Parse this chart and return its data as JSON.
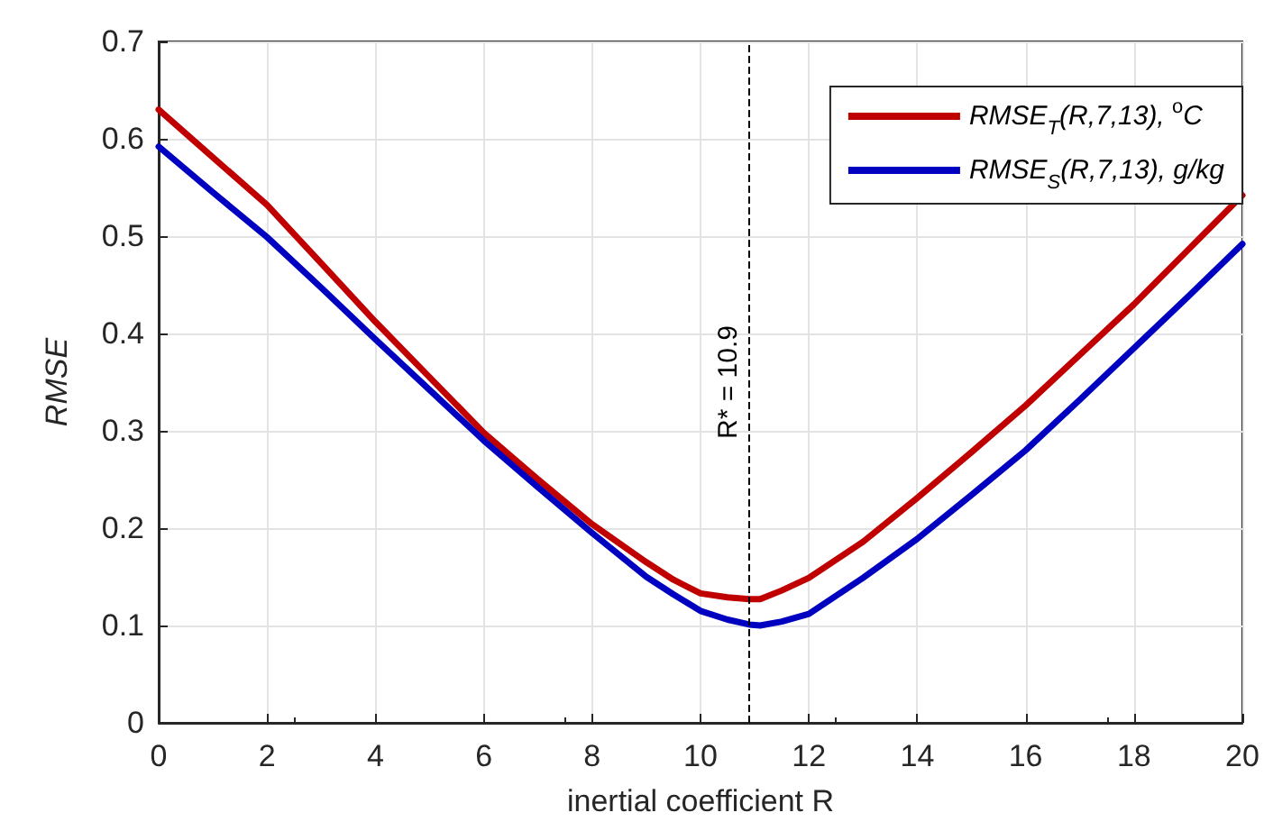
{
  "chart_data": {
    "type": "line",
    "xlabel": "inertial coefficient R",
    "ylabel": "RMSE",
    "x": [
      0,
      1,
      2,
      3,
      4,
      5,
      6,
      7,
      8,
      9,
      9.5,
      10,
      10.5,
      10.9,
      11.1,
      11.5,
      12,
      13,
      14,
      15,
      16,
      17,
      18,
      19,
      20
    ],
    "series": [
      {
        "name": "RMSE$_{T}$(R,7,13), $^{o}$C",
        "color": "#c00000",
        "values": [
          0.63,
          0.581,
          0.532,
          0.472,
          0.412,
          0.355,
          0.298,
          0.25,
          0.204,
          0.165,
          0.147,
          0.133,
          0.129,
          0.127,
          0.127,
          0.136,
          0.149,
          0.186,
          0.231,
          0.278,
          0.326,
          0.378,
          0.43,
          0.486,
          0.542
        ]
      },
      {
        "name": "RMSE$_{S}$(R,7,13), g/kg",
        "color": "#0000c0",
        "values": [
          0.592,
          0.545,
          0.499,
          0.447,
          0.394,
          0.342,
          0.29,
          0.242,
          0.195,
          0.15,
          0.132,
          0.115,
          0.106,
          0.101,
          0.1,
          0.104,
          0.112,
          0.149,
          0.189,
          0.234,
          0.28,
          0.332,
          0.385,
          0.438,
          0.492
        ]
      }
    ],
    "xlim": [
      0,
      20
    ],
    "xticks": [
      0,
      2,
      4,
      6,
      8,
      10,
      12,
      14,
      16,
      18,
      20
    ],
    "ylim": [
      0,
      0.7
    ],
    "yticks": [
      0,
      0.1,
      0.2,
      0.3,
      0.4,
      0.5,
      0.6,
      0.7
    ],
    "ref_lines": [
      {
        "axis": "x",
        "value": 10.9,
        "label": "R* = 10.9",
        "color": "#000000",
        "line_style": "dashed"
      }
    ],
    "grid": true,
    "legend": "top right",
    "line_style": "solid",
    "marker": "none"
  }
}
